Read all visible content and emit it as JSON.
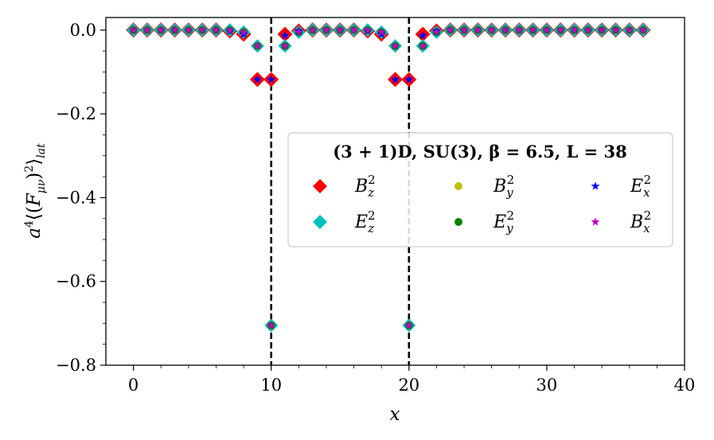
{
  "chart_data": {
    "type": "scatter",
    "xlabel": "x",
    "ylabel": "a⁴⟨(F_μν)²⟩_lat",
    "xlim": [
      -2,
      40
    ],
    "ylim": [
      -0.8,
      0.03
    ],
    "xticks": [
      0,
      10,
      20,
      30,
      40
    ],
    "yticks": [
      0.0,
      -0.2,
      -0.4,
      -0.6,
      -0.8
    ],
    "xtick_labels": [
      "0",
      "10",
      "20",
      "30",
      "40"
    ],
    "ytick_labels": [
      "0.0",
      "−0.2",
      "−0.4",
      "−0.6",
      "−0.8"
    ],
    "vlines": [
      10,
      20
    ],
    "grid": false,
    "legend_placement": "center-right",
    "legend_title": "(3 + 1)D, SU(3), β = 6.5, L = 38",
    "x": [
      0,
      1,
      2,
      3,
      4,
      5,
      6,
      7,
      8,
      9,
      10,
      11,
      12,
      13,
      14,
      15,
      16,
      17,
      18,
      19,
      20,
      21,
      22,
      23,
      24,
      25,
      26,
      27,
      28,
      29,
      30,
      31,
      32,
      33,
      34,
      35,
      36,
      37
    ],
    "series": [
      {
        "name": "B_z²",
        "marker": "diamond",
        "color": "#ff0000",
        "values": [
          0,
          0,
          0,
          0,
          0,
          0,
          0,
          -0.002,
          -0.01,
          -0.118,
          -0.118,
          -0.01,
          -0.002,
          0,
          0,
          0,
          0,
          -0.002,
          -0.01,
          -0.118,
          -0.118,
          -0.01,
          -0.002,
          0,
          0,
          0,
          0,
          0,
          0,
          0,
          0,
          0,
          0,
          0,
          0,
          0,
          0,
          0
        ]
      },
      {
        "name": "B_y²",
        "marker": "circle",
        "color": "#bfbf00",
        "values": [
          0,
          0,
          0,
          0,
          0,
          0,
          0,
          0,
          -0.005,
          -0.038,
          -0.705,
          -0.038,
          -0.005,
          0,
          0,
          0,
          0,
          0,
          -0.005,
          -0.038,
          -0.705,
          -0.038,
          -0.005,
          0,
          0,
          0,
          0,
          0,
          0,
          0,
          0,
          0,
          0,
          0,
          0,
          0,
          0,
          0
        ]
      },
      {
        "name": "E_x²",
        "marker": "star",
        "color": "#0000ff",
        "values": [
          0,
          0,
          0,
          0,
          0,
          0,
          0,
          -0.002,
          -0.01,
          -0.118,
          -0.118,
          -0.013,
          -0.002,
          0,
          0,
          0,
          0,
          -0.002,
          -0.01,
          -0.118,
          -0.118,
          -0.013,
          -0.002,
          0,
          0,
          0,
          0,
          0,
          0,
          0,
          0,
          0,
          0,
          0,
          0,
          0,
          0,
          0
        ]
      },
      {
        "name": "E_z²",
        "marker": "diamond",
        "color": "#00bfbf",
        "values": [
          0,
          0,
          0,
          0,
          0,
          0,
          0,
          0,
          -0.005,
          -0.038,
          -0.705,
          -0.038,
          -0.005,
          0,
          0,
          0,
          0,
          0,
          -0.005,
          -0.038,
          -0.705,
          -0.038,
          -0.005,
          0,
          0,
          0,
          0,
          0,
          0,
          0,
          0,
          0,
          0,
          0,
          0,
          0,
          0,
          0
        ]
      },
      {
        "name": "E_y²",
        "marker": "circle",
        "color": "#008000",
        "values": [
          0,
          0,
          0,
          0,
          0,
          0,
          0,
          0,
          -0.005,
          -0.038,
          -0.705,
          -0.038,
          -0.005,
          0,
          0,
          0,
          0,
          0,
          -0.005,
          -0.038,
          -0.705,
          -0.038,
          -0.005,
          0,
          0,
          0,
          0,
          0,
          0,
          0,
          0,
          0,
          0,
          0,
          0,
          0,
          0,
          0
        ]
      },
      {
        "name": "B_x²",
        "marker": "star",
        "color": "#bf00bf",
        "values": [
          0,
          0,
          0,
          0,
          0,
          0,
          0,
          0,
          -0.005,
          -0.038,
          -0.705,
          -0.038,
          -0.005,
          0,
          0,
          0,
          0,
          0,
          -0.005,
          -0.038,
          -0.705,
          -0.038,
          -0.005,
          0,
          0,
          0,
          0,
          0,
          0,
          0,
          0,
          0,
          0,
          0,
          0,
          0,
          0,
          0
        ]
      }
    ]
  }
}
